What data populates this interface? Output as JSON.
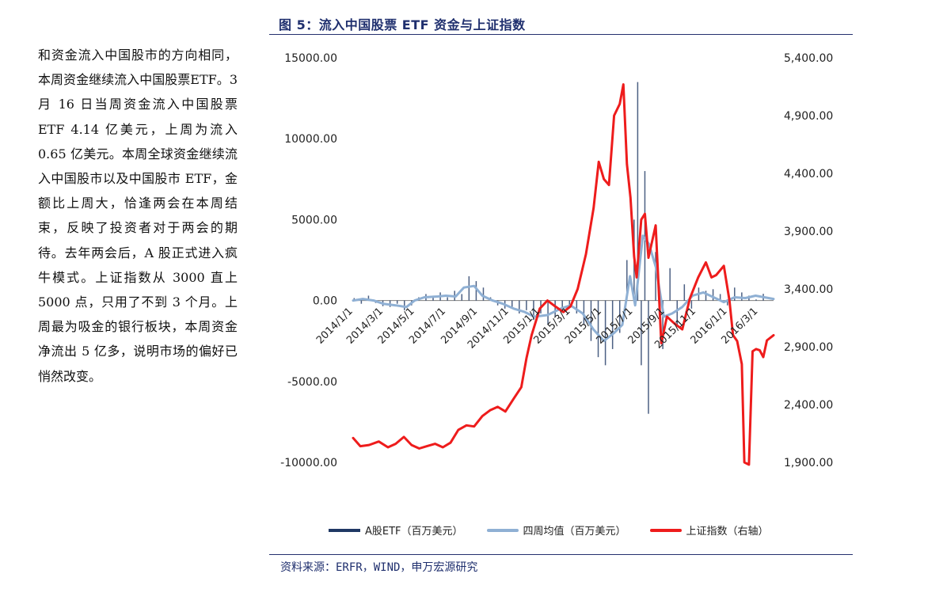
{
  "left_text": "和资金流入中国股市的方向相同，本周资金继续流入中国股票ETF。3 月 16 日当周资金流入中国股票 ETF 4.14 亿美元，上周为流入 0.65 亿美元。本周全球资金继续流入中国股市以及中国股市 ETF，金额比上周大，恰逢两会在本周结束，反映了投资者对于两会的期待。去年两会后，A 股正式进入疯牛模式。上证指数从 3000 直上 5000 点，只用了不到 3 个月。上周最为吸金的银行板块，本周资金净流出 5 亿多，说明市场的偏好已悄然改变。",
  "figure_title": "图 5：流入中国股票 ETF 资金与上证指数",
  "source": "资料来源：ERFR，WIND，申万宏源研究",
  "legend": {
    "bar": "A股ETF（百万美元）",
    "avg": "四周均值（百万美元）",
    "index": "上证指数（右轴）"
  },
  "colors": {
    "bar": "#1f3864",
    "avg": "#8fb0d4",
    "index": "#ee1c1c",
    "title": "#1f2f6e"
  },
  "chart_data": {
    "type": "bar+line",
    "y_left": {
      "ticks": [
        "15000.00",
        "10000.00",
        "5000.00",
        "0.00",
        "-5000.00",
        "-10000.00"
      ],
      "range": [
        -10000,
        15000
      ]
    },
    "y_right": {
      "ticks": [
        "5,400.00",
        "4,900.00",
        "4,400.00",
        "3,900.00",
        "3,400.00",
        "2,900.00",
        "2,400.00",
        "1,900.00"
      ],
      "range": [
        1900,
        5400
      ]
    },
    "x_ticks": [
      "2014/1/1",
      "2014/3/1",
      "2014/5/1",
      "2014/7/1",
      "2014/9/1",
      "2014/11/1",
      "2015/1/1",
      "2015/3/1",
      "2015/5/1",
      "2015/7/1",
      "2015/9/1",
      "2015/11/1",
      "2016/1/1",
      "2016/3/1"
    ],
    "x_range": [
      "2014/1/1",
      "2016/3/31"
    ],
    "series": [
      {
        "name": "A股ETF（百万美元）",
        "kind": "bar",
        "points": [
          [
            "2014/1/3",
            150
          ],
          [
            "2014/1/17",
            -200
          ],
          [
            "2014/1/31",
            300
          ],
          [
            "2014/2/14",
            -150
          ],
          [
            "2014/2/28",
            -350
          ],
          [
            "2014/3/14",
            -400
          ],
          [
            "2014/3/28",
            -200
          ],
          [
            "2014/4/11",
            -600
          ],
          [
            "2014/4/25",
            -300
          ],
          [
            "2014/5/9",
            200
          ],
          [
            "2014/5/23",
            400
          ],
          [
            "2014/6/6",
            300
          ],
          [
            "2014/6/20",
            500
          ],
          [
            "2014/7/4",
            200
          ],
          [
            "2014/7/18",
            600
          ],
          [
            "2014/8/1",
            400
          ],
          [
            "2014/8/15",
            1500
          ],
          [
            "2014/8/29",
            1200
          ],
          [
            "2014/9/12",
            800
          ],
          [
            "2014/9/26",
            200
          ],
          [
            "2014/10/10",
            -300
          ],
          [
            "2014/10/24",
            -500
          ],
          [
            "2014/11/7",
            -400
          ],
          [
            "2014/11/21",
            -800
          ],
          [
            "2014/12/5",
            -600
          ],
          [
            "2014/12/19",
            -1200
          ],
          [
            "2015/1/2",
            -800
          ],
          [
            "2015/1/16",
            -1500
          ],
          [
            "2015/1/30",
            -1000
          ],
          [
            "2015/2/13",
            -500
          ],
          [
            "2015/2/27",
            -300
          ],
          [
            "2015/3/13",
            -800
          ],
          [
            "2015/3/27",
            -1500
          ],
          [
            "2015/4/10",
            -2500
          ],
          [
            "2015/4/24",
            -3500
          ],
          [
            "2015/5/8",
            -4000
          ],
          [
            "2015/5/22",
            -3000
          ],
          [
            "2015/6/5",
            -2000
          ],
          [
            "2015/6/19",
            2500
          ],
          [
            "2015/7/3",
            5000
          ],
          [
            "2015/7/10",
            13500
          ],
          [
            "2015/7/17",
            -4000
          ],
          [
            "2015/7/24",
            8000
          ],
          [
            "2015/7/31",
            -7000
          ],
          [
            "2015/8/14",
            3000
          ],
          [
            "2015/8/28",
            -3000
          ],
          [
            "2015/9/11",
            2000
          ],
          [
            "2015/9/25",
            -1500
          ],
          [
            "2015/10/9",
            1000
          ],
          [
            "2015/10/23",
            -500
          ],
          [
            "2015/11/6",
            800
          ],
          [
            "2015/11/20",
            600
          ],
          [
            "2015/12/4",
            700
          ],
          [
            "2015/12/18",
            400
          ],
          [
            "2016/1/1",
            -300
          ],
          [
            "2016/1/15",
            800
          ],
          [
            "2016/1/29",
            500
          ],
          [
            "2016/2/12",
            300
          ],
          [
            "2016/2/26",
            65
          ],
          [
            "2016/3/11",
            414
          ]
        ]
      },
      {
        "name": "四周均值（百万美元）",
        "kind": "line",
        "points": [
          [
            "2014/1/1",
            0
          ],
          [
            "2014/1/20",
            100
          ],
          [
            "2014/2/10",
            0
          ],
          [
            "2014/3/1",
            -200
          ],
          [
            "2014/3/25",
            -300
          ],
          [
            "2014/4/15",
            -400
          ],
          [
            "2014/5/1",
            0
          ],
          [
            "2014/5/20",
            200
          ],
          [
            "2014/6/15",
            250
          ],
          [
            "2014/7/1",
            300
          ],
          [
            "2014/7/20",
            250
          ],
          [
            "2014/8/5",
            800
          ],
          [
            "2014/8/25",
            900
          ],
          [
            "2014/9/10",
            300
          ],
          [
            "2014/9/30",
            0
          ],
          [
            "2014/10/20",
            -200
          ],
          [
            "2014/11/10",
            -500
          ],
          [
            "2014/12/1",
            -700
          ],
          [
            "2014/12/20",
            -1000
          ],
          [
            "2015/1/15",
            -900
          ],
          [
            "2015/2/10",
            -500
          ],
          [
            "2015/3/1",
            -300
          ],
          [
            "2015/3/25",
            -800
          ],
          [
            "2015/4/15",
            -1800
          ],
          [
            "2015/5/5",
            -2500
          ],
          [
            "2015/5/25",
            -2000
          ],
          [
            "2015/6/10",
            -1500
          ],
          [
            "2015/6/25",
            1500
          ],
          [
            "2015/7/5",
            -300
          ],
          [
            "2015/7/20",
            4000
          ],
          [
            "2015/8/1",
            3500
          ],
          [
            "2015/8/15",
            2000
          ],
          [
            "2015/8/30",
            -1000
          ],
          [
            "2015/9/15",
            -800
          ],
          [
            "2015/10/5",
            -400
          ],
          [
            "2015/10/25",
            300
          ],
          [
            "2015/11/15",
            500
          ],
          [
            "2015/12/5",
            200
          ],
          [
            "2015/12/25",
            -100
          ],
          [
            "2016/1/15",
            200
          ],
          [
            "2016/2/5",
            150
          ],
          [
            "2016/2/25",
            300
          ],
          [
            "2016/3/31",
            100
          ]
        ]
      },
      {
        "name": "上证指数（右轴）",
        "kind": "line",
        "axis": "right",
        "points": [
          [
            "2014/1/1",
            2110
          ],
          [
            "2014/1/15",
            2040
          ],
          [
            "2014/2/1",
            2050
          ],
          [
            "2014/2/20",
            2080
          ],
          [
            "2014/3/10",
            2030
          ],
          [
            "2014/3/25",
            2060
          ],
          [
            "2014/4/10",
            2120
          ],
          [
            "2014/4/25",
            2050
          ],
          [
            "2014/5/10",
            2020
          ],
          [
            "2014/5/25",
            2040
          ],
          [
            "2014/6/10",
            2060
          ],
          [
            "2014/6/25",
            2030
          ],
          [
            "2014/7/10",
            2070
          ],
          [
            "2014/7/25",
            2180
          ],
          [
            "2014/8/10",
            2220
          ],
          [
            "2014/8/25",
            2210
          ],
          [
            "2014/9/10",
            2300
          ],
          [
            "2014/9/25",
            2350
          ],
          [
            "2014/10/10",
            2380
          ],
          [
            "2014/10/25",
            2340
          ],
          [
            "2014/11/10",
            2450
          ],
          [
            "2014/11/25",
            2550
          ],
          [
            "2014/12/5",
            2800
          ],
          [
            "2014/12/15",
            3000
          ],
          [
            "2014/12/31",
            3230
          ],
          [
            "2015/1/15",
            3300
          ],
          [
            "2015/1/30",
            3250
          ],
          [
            "2015/2/15",
            3200
          ],
          [
            "2015/3/1",
            3250
          ],
          [
            "2015/3/15",
            3400
          ],
          [
            "2015/3/31",
            3700
          ],
          [
            "2015/4/15",
            4100
          ],
          [
            "2015/4/25",
            4500
          ],
          [
            "2015/5/5",
            4350
          ],
          [
            "2015/5/15",
            4300
          ],
          [
            "2015/5/25",
            4900
          ],
          [
            "2015/6/5",
            5000
          ],
          [
            "2015/6/12",
            5170
          ],
          [
            "2015/6/19",
            4480
          ],
          [
            "2015/6/26",
            4190
          ],
          [
            "2015/7/3",
            3680
          ],
          [
            "2015/7/8",
            3500
          ],
          [
            "2015/7/17",
            4000
          ],
          [
            "2015/7/24",
            4050
          ],
          [
            "2015/7/31",
            3670
          ],
          [
            "2015/8/14",
            3950
          ],
          [
            "2015/8/25",
            2930
          ],
          [
            "2015/9/5",
            3160
          ],
          [
            "2015/9/20",
            3100
          ],
          [
            "2015/10/5",
            3050
          ],
          [
            "2015/10/20",
            3320
          ],
          [
            "2015/11/5",
            3500
          ],
          [
            "2015/11/20",
            3630
          ],
          [
            "2015/12/1",
            3500
          ],
          [
            "2015/12/10",
            3520
          ],
          [
            "2015/12/25",
            3600
          ],
          [
            "2016/1/5",
            3300
          ],
          [
            "2016/1/12",
            3000
          ],
          [
            "2016/1/20",
            2950
          ],
          [
            "2016/1/29",
            2750
          ],
          [
            "2016/2/3",
            1900
          ],
          [
            "2016/2/12",
            1880
          ],
          [
            "2016/2/19",
            2860
          ],
          [
            "2016/2/26",
            2880
          ],
          [
            "2016/3/4",
            2870
          ],
          [
            "2016/3/11",
            2810
          ],
          [
            "2016/3/18",
            2955
          ],
          [
            "2016/3/31",
            3000
          ]
        ]
      }
    ]
  }
}
